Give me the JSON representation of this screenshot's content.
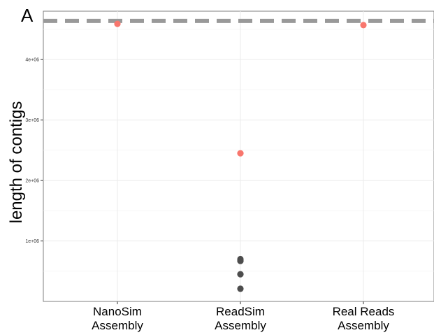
{
  "panel_label": "A",
  "chart_data": {
    "type": "scatter",
    "title": "",
    "xlabel": "",
    "ylabel": "length of contigs",
    "categories": [
      "NanoSim\nAssembly",
      "ReadSim\nAssembly",
      "Real Reads\nAssembly"
    ],
    "ylim": [
      0,
      4800000
    ],
    "yticks": [
      1000000,
      2000000,
      3000000,
      4000000
    ],
    "ytick_labels": [
      "1e+06",
      "2e+06",
      "3e+06",
      "4e+06"
    ],
    "grid": true,
    "reference_line": {
      "value": 4640000,
      "style": "dashed",
      "color": "#999999"
    },
    "series": [
      {
        "color": "#F8766D",
        "points": [
          {
            "category": 0,
            "y": 4590000
          },
          {
            "category": 1,
            "y": 2450000
          },
          {
            "category": 2,
            "y": 4570000
          }
        ]
      },
      {
        "color": "#4d4d4d",
        "points": [
          {
            "category": 1,
            "y": 700000
          },
          {
            "category": 1,
            "y": 670000
          },
          {
            "category": 1,
            "y": 450000
          },
          {
            "category": 1,
            "y": 210000
          }
        ]
      }
    ]
  }
}
